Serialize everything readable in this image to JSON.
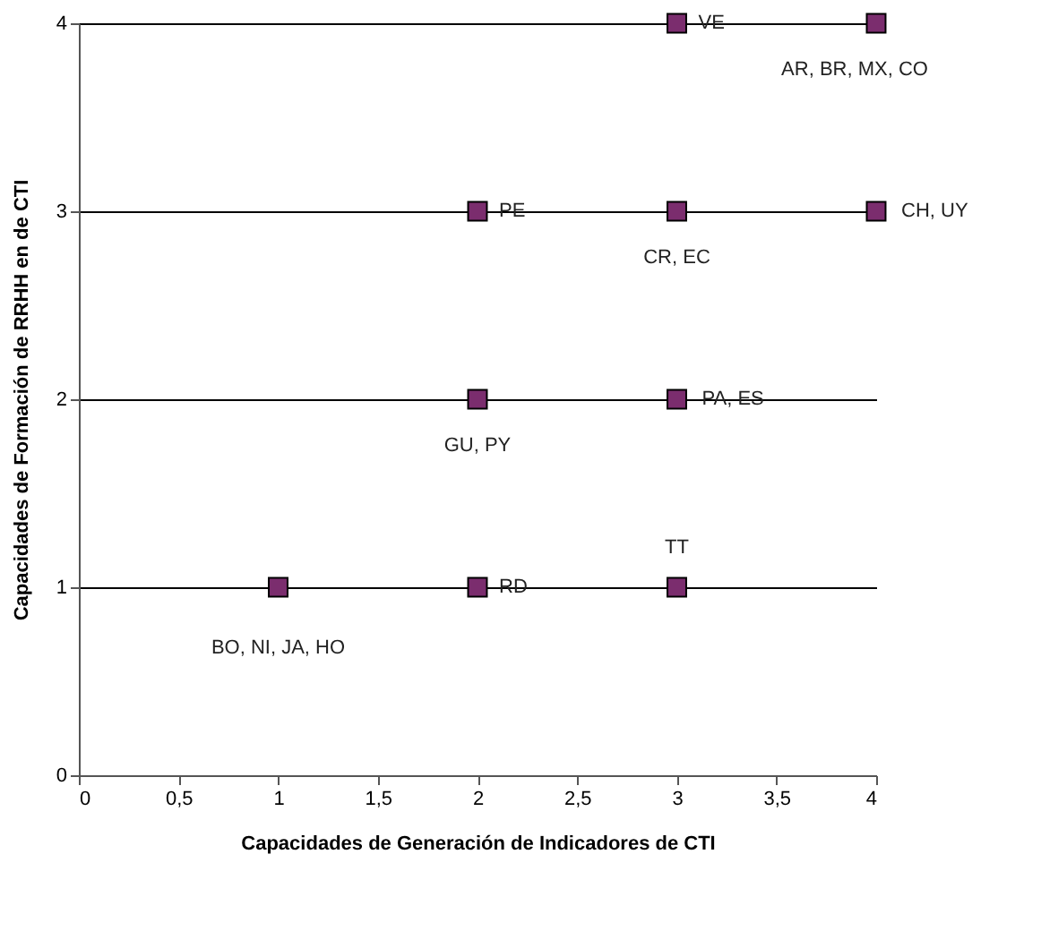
{
  "chart_data": {
    "type": "scatter",
    "xlabel": "Capacidades de Generación de Indicadores de CTI",
    "ylabel": "Capacidades de Formación de RRHH en de CTI",
    "x": [
      1,
      2,
      3,
      2,
      3,
      2,
      3,
      4,
      3,
      4
    ],
    "series": [
      {
        "color": "#7b2d6e",
        "values": [
          1,
          1,
          1,
          2,
          2,
          3,
          3,
          3,
          4,
          4
        ]
      }
    ],
    "marker": "square",
    "grid": "y",
    "xlim": [
      0,
      4
    ],
    "ylim": [
      0,
      4
    ],
    "xticks": [
      0,
      {
        "value": 0.5,
        "label": "0,5"
      },
      1,
      {
        "value": 1.5,
        "label": "1,5"
      },
      2,
      {
        "value": 2.5,
        "label": "2,5"
      },
      3,
      {
        "value": 3.5,
        "label": "3,5"
      },
      4
    ],
    "yticks": [
      0,
      1,
      2,
      3,
      4
    ],
    "annotations": [
      {
        "text": "BO, NI, JA, HO",
        "x": 1,
        "y": 1
      },
      {
        "text": "RD",
        "x": 2,
        "y": 1
      },
      {
        "text": "TT",
        "x": 3,
        "y": 1
      },
      {
        "text": "GU, PY",
        "x": 2,
        "y": 2
      },
      {
        "text": "PA, ES",
        "x": 3,
        "y": 2
      },
      {
        "text": "PE",
        "x": 2,
        "y": 3
      },
      {
        "text": "CR, EC",
        "x": 3,
        "y": 3
      },
      {
        "text": "CH, UY",
        "x": 4,
        "y": 3
      },
      {
        "text": "VE",
        "x": 3,
        "y": 4
      },
      {
        "text": "AR, BR, MX, CO",
        "x": 4,
        "y": 4
      }
    ]
  }
}
